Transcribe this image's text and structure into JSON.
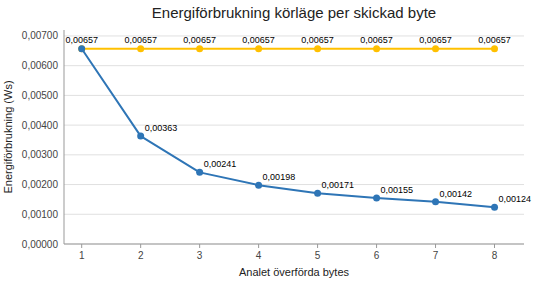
{
  "chart_data": {
    "type": "line",
    "title": "Energiförbrukning körläge per skickad byte",
    "xlabel": "Analet överförda bytes",
    "ylabel": "Energiförbrukning (Ws)",
    "x": [
      1,
      2,
      3,
      4,
      5,
      6,
      7,
      8
    ],
    "series": [
      {
        "color": "#FFC000",
        "marker": "circle",
        "values": [
          0.00657,
          0.00657,
          0.00657,
          0.00657,
          0.00657,
          0.00657,
          0.00657,
          0.00657
        ],
        "value_labels": [
          "0,00657",
          "0,00657",
          "0,00657",
          "0,00657",
          "0,00657",
          "0,00657",
          "0,00657",
          "0,00657"
        ]
      },
      {
        "color": "#2E75B6",
        "marker": "circle",
        "values": [
          0.00657,
          0.00363,
          0.00241,
          0.00198,
          0.00171,
          0.00155,
          0.00142,
          0.00124
        ],
        "value_labels": [
          null,
          "0,00363",
          "0,00241",
          "0,00198",
          "0,00171",
          "0,00155",
          "0,00142",
          "0,00124"
        ]
      }
    ],
    "xlim": [
      0.7,
      8.5
    ],
    "xticks": [
      1,
      2,
      3,
      4,
      5,
      6,
      7,
      8
    ],
    "ylim": [
      0.0,
      0.0072
    ],
    "yticks": [
      {
        "value": 0.0,
        "label": "0,00000"
      },
      {
        "value": 0.001,
        "label": "0,00100"
      },
      {
        "value": 0.002,
        "label": "0,00200"
      },
      {
        "value": 0.003,
        "label": "0,00300"
      },
      {
        "value": 0.004,
        "label": "0,00400"
      },
      {
        "value": 0.005,
        "label": "0,00500"
      },
      {
        "value": 0.006,
        "label": "0,00600"
      },
      {
        "value": 0.007,
        "label": "0,00700"
      }
    ],
    "grid": true,
    "data_labels": true
  }
}
